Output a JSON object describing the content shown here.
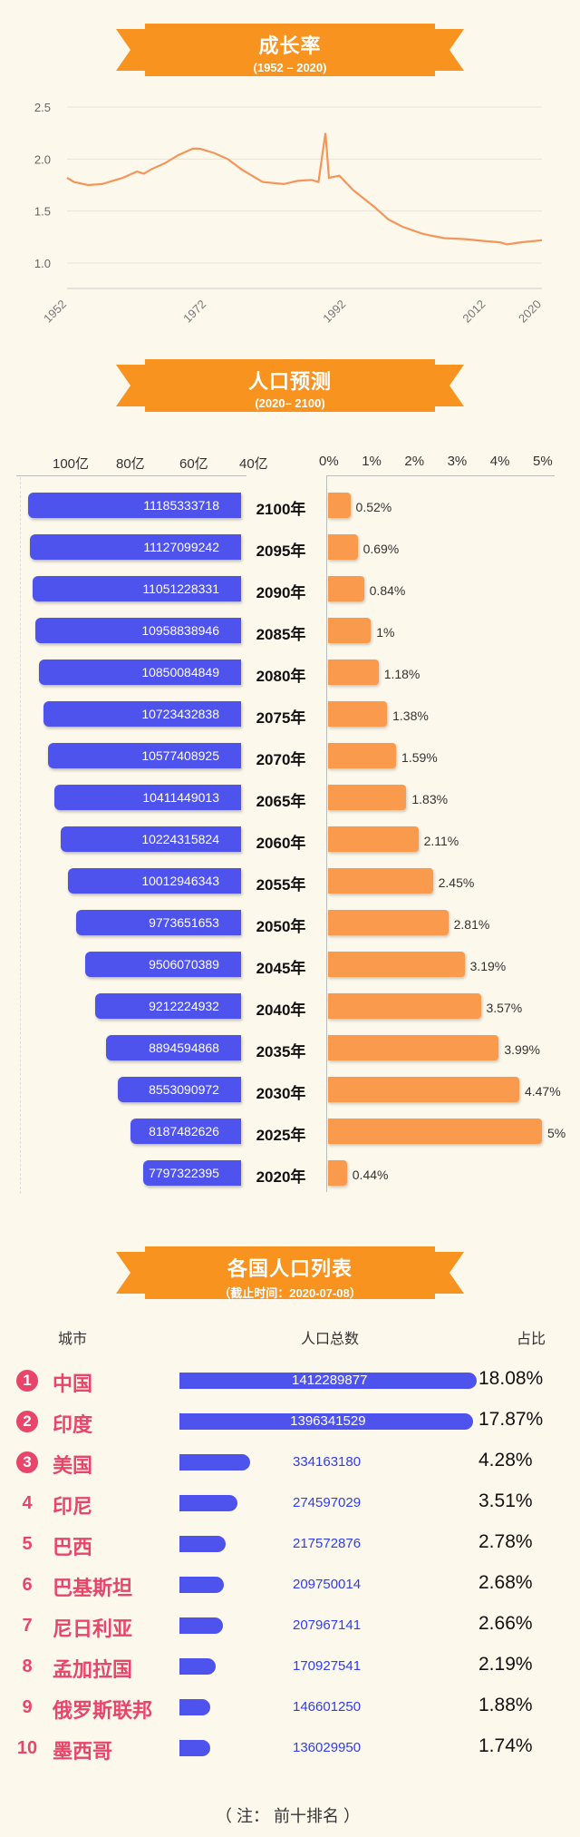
{
  "sections": {
    "growth": {
      "title": "成长率",
      "subtitle": "(1952 – 2020)"
    },
    "forecast": {
      "title": "人口预测",
      "subtitle": "(2020– 2100)"
    },
    "countries": {
      "title": "各国人口列表",
      "subtitle": "（截止时间：2020-07-08）"
    }
  },
  "colors": {
    "banner": "#f7931e",
    "population_bar": "#4f53ee",
    "rate_bar": "#f99a4c",
    "line": "#f4955a",
    "rank_pink": "#e8456a"
  },
  "chart_data": [
    {
      "type": "line",
      "title": "成长率",
      "subtitle": "(1952 – 2020)",
      "ylim": [
        1.0,
        2.5
      ],
      "yticks": [
        "2.5",
        "2.0",
        "1.5",
        "1.0"
      ],
      "xticks": [
        "1952",
        "1972",
        "1992",
        "2012",
        "2020"
      ],
      "grid": true,
      "series": [
        {
          "x": [
            1952,
            1953,
            1955,
            1957,
            1960,
            1962,
            1963,
            1964,
            1966,
            1968,
            1970,
            1971,
            1973,
            1975,
            1977,
            1980,
            1983,
            1985,
            1987,
            1988,
            1989,
            1989.5,
            1991,
            1993,
            1996,
            1998,
            2000,
            2003,
            2006,
            2009,
            2012,
            2014,
            2015,
            2017,
            2020
          ],
          "values": [
            1.82,
            1.78,
            1.75,
            1.76,
            1.82,
            1.88,
            1.86,
            1.9,
            1.96,
            2.04,
            2.1,
            2.1,
            2.06,
            2.0,
            1.9,
            1.78,
            1.76,
            1.79,
            1.8,
            1.78,
            2.25,
            1.82,
            1.84,
            1.7,
            1.54,
            1.42,
            1.35,
            1.28,
            1.24,
            1.23,
            1.21,
            1.2,
            1.18,
            1.2,
            1.22
          ]
        }
      ]
    },
    {
      "type": "bar",
      "title": "人口预测",
      "subtitle": "(2020– 2100)",
      "population_axis": {
        "ticks": [
          "100亿",
          "80亿",
          "60亿",
          "40亿"
        ],
        "range": [
          4000000000,
          11200000000
        ]
      },
      "rate_axis": {
        "ticks": [
          "0%",
          "1%",
          "2%",
          "3%",
          "4%",
          "5%"
        ],
        "range": [
          0,
          5
        ]
      },
      "categories": [
        "2100年",
        "2095年",
        "2090年",
        "2085年",
        "2080年",
        "2075年",
        "2070年",
        "2065年",
        "2060年",
        "2055年",
        "2050年",
        "2045年",
        "2040年",
        "2035年",
        "2030年",
        "2025年",
        "2020年"
      ],
      "series": [
        {
          "values": [
            11185333718,
            11127099242,
            11051228331,
            10958838946,
            10850084849,
            10723432838,
            10577408925,
            10411449013,
            10224315824,
            10012946343,
            9773651653,
            9506070389,
            9212224932,
            8894594868,
            8553090972,
            8187482626,
            7797322395
          ]
        },
        {
          "values": [
            0.52,
            0.69,
            0.84,
            1,
            1.18,
            1.38,
            1.59,
            1.83,
            2.11,
            2.45,
            2.81,
            3.19,
            3.57,
            3.99,
            4.47,
            5,
            0.44
          ],
          "labels": [
            "0.52%",
            "0.69%",
            "0.84%",
            "1%",
            "1.18%",
            "1.38%",
            "1.59%",
            "1.83%",
            "2.11%",
            "2.45%",
            "2.81%",
            "3.19%",
            "3.57%",
            "3.99%",
            "4.47%",
            "5%",
            "0.44%"
          ]
        }
      ]
    },
    {
      "type": "table",
      "title": "各国人口列表",
      "subtitle": "（截止时间：2020-07-08）",
      "columns": [
        "城市",
        "人口总数",
        "占比"
      ],
      "rows": [
        {
          "rank": "1",
          "name": "中国",
          "population": 1412289877,
          "pop_text": "1412289877",
          "share": "18.08%"
        },
        {
          "rank": "2",
          "name": "印度",
          "population": 1396341529,
          "pop_text": "1396341529",
          "share": "17.87%"
        },
        {
          "rank": "3",
          "name": "美国",
          "population": 334163180,
          "pop_text": "334163180",
          "share": "4.28%"
        },
        {
          "rank": "4",
          "name": "印尼",
          "population": 274597029,
          "pop_text": "274597029",
          "share": "3.51%"
        },
        {
          "rank": "5",
          "name": "巴西",
          "population": 217572876,
          "pop_text": "217572876",
          "share": "2.78%"
        },
        {
          "rank": "6",
          "name": "巴基斯坦",
          "population": 209750014,
          "pop_text": "209750014",
          "share": "2.68%"
        },
        {
          "rank": "7",
          "name": "尼日利亚",
          "population": 207967141,
          "pop_text": "207967141",
          "share": "2.66%"
        },
        {
          "rank": "8",
          "name": "孟加拉国",
          "population": 170927541,
          "pop_text": "170927541",
          "share": "2.19%"
        },
        {
          "rank": "9",
          "name": "俄罗斯联邦",
          "population": 146601250,
          "pop_text": "146601250",
          "share": "1.88%"
        },
        {
          "rank": "10",
          "name": "墨西哥",
          "population": 136029950,
          "pop_text": "136029950",
          "share": "1.74%"
        }
      ],
      "note": "（ 注：  前十排名 ）"
    }
  ]
}
